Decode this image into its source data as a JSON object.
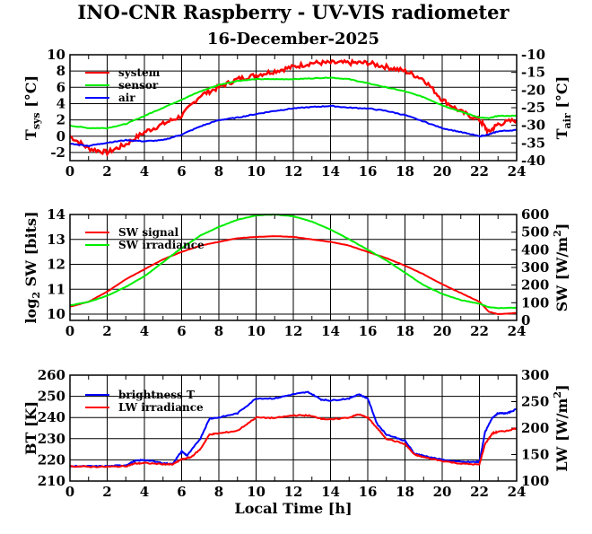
{
  "title": "INO-CNR Raspberry - UV-VIS radiometer",
  "subtitle": "16-December-2025",
  "xlabel": "Local Time [h]",
  "chart_data": [
    {
      "type": "line",
      "xlim": [
        0,
        24
      ],
      "xticks": [
        0,
        2,
        4,
        6,
        8,
        10,
        12,
        14,
        16,
        18,
        20,
        22,
        24
      ],
      "ylim": [
        -3,
        10
      ],
      "yticks": [
        -2,
        0,
        2,
        4,
        6,
        8,
        10
      ],
      "ylabel": {
        "main": "T",
        "sub": "sys",
        "rest": " [°C]"
      },
      "y2lim": [
        -40,
        -10
      ],
      "y2ticks": [
        -40,
        -35,
        -30,
        -25,
        -20,
        -15,
        -10
      ],
      "y2label": {
        "main": "T",
        "sub": "air",
        "rest": " [°C]"
      },
      "grid": true,
      "legend_position": "top-left",
      "series": [
        {
          "name": "system",
          "color": "#ff0000",
          "axis": "left",
          "noise": 0.6,
          "x": [
            0,
            1,
            2,
            3,
            4,
            5,
            6,
            7,
            8,
            9,
            10,
            11,
            12,
            13,
            14,
            15,
            16,
            17,
            18,
            19,
            20,
            21,
            22,
            22.5,
            23,
            24
          ],
          "y": [
            0,
            -1.5,
            -2,
            -1,
            0.5,
            1.5,
            2.5,
            5,
            6,
            7,
            7.5,
            8,
            8.5,
            9,
            9,
            9,
            9,
            8.5,
            8,
            7,
            4.5,
            3,
            2,
            0.5,
            1.5,
            2
          ]
        },
        {
          "name": "sensor",
          "color": "#00ee00",
          "axis": "left",
          "noise": 0.08,
          "x": [
            0,
            1,
            2,
            3,
            4,
            5,
            6,
            7,
            8,
            9,
            10,
            11,
            12,
            13,
            14,
            15,
            16,
            17,
            18,
            19,
            20,
            21,
            22,
            22.5,
            23,
            24
          ],
          "y": [
            1.3,
            1.0,
            1.0,
            1.5,
            2.5,
            3.5,
            4.5,
            5.5,
            6.3,
            6.8,
            7,
            7,
            7,
            7.1,
            7.2,
            7,
            6.5,
            6,
            5.5,
            4.8,
            3.8,
            3,
            2.3,
            2.2,
            2.5,
            2.5
          ]
        },
        {
          "name": "air",
          "color": "#0000ff",
          "axis": "right",
          "noise": 0.25,
          "x": [
            0,
            1,
            2,
            3,
            4,
            5,
            6,
            7,
            8,
            9,
            10,
            11,
            12,
            13,
            14,
            15,
            16,
            17,
            18,
            19,
            20,
            21,
            22,
            22.5,
            23,
            24
          ],
          "y": [
            -35.2,
            -35.8,
            -34.9,
            -34.2,
            -34.5,
            -34.2,
            -32.6,
            -30.3,
            -28.5,
            -27.8,
            -26.8,
            -25.9,
            -25.2,
            -24.8,
            -24.5,
            -25.0,
            -25.2,
            -25.9,
            -27.1,
            -28.9,
            -30.8,
            -31.9,
            -33.1,
            -32.6,
            -31.7,
            -31.3
          ]
        }
      ]
    },
    {
      "type": "line",
      "xlim": [
        0,
        24
      ],
      "xticks": [
        0,
        2,
        4,
        6,
        8,
        10,
        12,
        14,
        16,
        18,
        20,
        22,
        24
      ],
      "ylim": [
        9.75,
        14
      ],
      "yticks": [
        10,
        11,
        12,
        13,
        14
      ],
      "ylabel": {
        "main": "log",
        "sub": "2",
        "rest": " SW [bits]"
      },
      "y2lim": [
        0,
        600
      ],
      "y2ticks": [
        0,
        100,
        200,
        300,
        400,
        500,
        600
      ],
      "y2label": {
        "main": "SW [W/m",
        "sup": "2",
        "rest": "]"
      },
      "grid": true,
      "legend_position": "top-left",
      "series": [
        {
          "name": "SW signal",
          "color": "#ff0000",
          "axis": "left",
          "noise": 0.01,
          "x": [
            0,
            1,
            2,
            3,
            4,
            5,
            6,
            7,
            8,
            9,
            10,
            11,
            12,
            13,
            14,
            15,
            16,
            17,
            18,
            19,
            20,
            21,
            22,
            22.5,
            23,
            24
          ],
          "y": [
            10.3,
            10.5,
            10.9,
            11.4,
            11.8,
            12.2,
            12.5,
            12.75,
            12.9,
            13.05,
            13.1,
            13.13,
            13.1,
            13.0,
            12.9,
            12.75,
            12.5,
            12.25,
            11.95,
            11.6,
            11.2,
            10.85,
            10.5,
            10.1,
            10.0,
            10.05
          ]
        },
        {
          "name": "SW irradiance",
          "color": "#00ee00",
          "axis": "right",
          "noise": 2,
          "x": [
            0,
            1,
            2,
            3,
            4,
            5,
            6,
            7,
            8,
            9,
            10,
            11,
            12,
            13,
            14,
            15,
            16,
            17,
            18,
            19,
            20,
            21,
            22,
            22.5,
            23,
            24
          ],
          "y": [
            85,
            105,
            140,
            190,
            250,
            330,
            410,
            480,
            530,
            570,
            595,
            600,
            590,
            560,
            515,
            460,
            400,
            340,
            270,
            200,
            150,
            115,
            95,
            75,
            70,
            72
          ]
        }
      ]
    },
    {
      "type": "line",
      "xlim": [
        0,
        24
      ],
      "xticks": [
        0,
        2,
        4,
        6,
        8,
        10,
        12,
        14,
        16,
        18,
        20,
        22,
        24
      ],
      "ylim": [
        210,
        260
      ],
      "yticks": [
        210,
        220,
        230,
        240,
        250,
        260
      ],
      "ylabel": {
        "main": "BT [K]"
      },
      "y2lim": [
        100,
        300
      ],
      "y2ticks": [
        100,
        150,
        200,
        250,
        300
      ],
      "y2label": {
        "main": "LW [W/m",
        "sup": "2",
        "rest": "]"
      },
      "grid": true,
      "legend_position": "top-left",
      "series": [
        {
          "name": "brightness T",
          "color": "#0000ff",
          "axis": "left",
          "noise": 0.5,
          "x": [
            0,
            1,
            2,
            3,
            3.5,
            4,
            5,
            5.5,
            6,
            6.3,
            7,
            7.5,
            8,
            9,
            10,
            11,
            12,
            12.8,
            13.5,
            14,
            15,
            15.5,
            16,
            16.5,
            17,
            18,
            18.5,
            19,
            20,
            21,
            21.8,
            22,
            22.3,
            22.7,
            23,
            23.5,
            24
          ],
          "y": [
            217,
            217,
            217,
            217.5,
            219.5,
            220,
            218.5,
            218,
            224,
            222,
            230,
            239.5,
            240,
            242,
            249,
            249,
            251,
            252,
            248.5,
            248,
            249,
            251,
            249,
            237,
            232,
            229,
            223,
            222,
            220,
            219,
            219,
            219,
            233,
            240,
            242,
            242,
            244
          ]
        },
        {
          "name": "LW irradiance",
          "color": "#ff0000",
          "axis": "right",
          "noise": 2,
          "x": [
            0,
            1,
            2,
            3,
            3.5,
            4,
            5,
            5.5,
            6,
            6.5,
            7,
            7.5,
            8,
            9,
            10,
            11,
            12,
            12.8,
            13.5,
            14,
            15,
            15.5,
            16,
            16.5,
            17,
            18,
            18.5,
            19,
            20,
            21,
            22,
            22.3,
            22.7,
            23,
            23.5,
            24
          ],
          "y": [
            128,
            127,
            127,
            128,
            133,
            134,
            132,
            131,
            141,
            145,
            160,
            188,
            190,
            195,
            220,
            219,
            224,
            224,
            218,
            216,
            220,
            226,
            220,
            200,
            180,
            170,
            150,
            145,
            138,
            133,
            131,
            170,
            190,
            193,
            195,
            200
          ]
        }
      ]
    }
  ]
}
